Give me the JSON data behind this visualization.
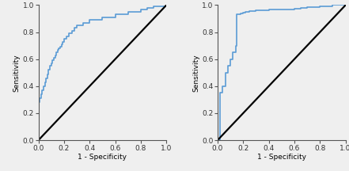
{
  "roc1_fpr": [
    0.0,
    0.0,
    0.01,
    0.01,
    0.02,
    0.02,
    0.03,
    0.03,
    0.04,
    0.04,
    0.05,
    0.05,
    0.06,
    0.06,
    0.07,
    0.07,
    0.08,
    0.08,
    0.09,
    0.09,
    0.1,
    0.1,
    0.11,
    0.11,
    0.12,
    0.12,
    0.13,
    0.13,
    0.14,
    0.14,
    0.15,
    0.15,
    0.16,
    0.16,
    0.17,
    0.17,
    0.18,
    0.18,
    0.19,
    0.19,
    0.2,
    0.2,
    0.22,
    0.22,
    0.24,
    0.24,
    0.26,
    0.26,
    0.28,
    0.28,
    0.3,
    0.3,
    0.35,
    0.35,
    0.4,
    0.4,
    0.5,
    0.5,
    0.6,
    0.6,
    0.7,
    0.7,
    0.8,
    0.8,
    0.85,
    0.85,
    0.9,
    0.9,
    1.0,
    1.0
  ],
  "roc1_tpr": [
    0.0,
    0.28,
    0.28,
    0.31,
    0.31,
    0.34,
    0.34,
    0.37,
    0.37,
    0.4,
    0.4,
    0.43,
    0.43,
    0.46,
    0.46,
    0.49,
    0.49,
    0.52,
    0.52,
    0.55,
    0.55,
    0.57,
    0.57,
    0.59,
    0.59,
    0.61,
    0.61,
    0.63,
    0.63,
    0.65,
    0.65,
    0.67,
    0.67,
    0.68,
    0.68,
    0.69,
    0.69,
    0.71,
    0.71,
    0.73,
    0.73,
    0.75,
    0.75,
    0.77,
    0.77,
    0.79,
    0.79,
    0.81,
    0.81,
    0.83,
    0.83,
    0.85,
    0.85,
    0.87,
    0.87,
    0.89,
    0.89,
    0.91,
    0.91,
    0.93,
    0.93,
    0.95,
    0.95,
    0.97,
    0.97,
    0.98,
    0.98,
    0.99,
    0.99,
    1.0
  ],
  "roc2_fpr": [
    0.0,
    0.0,
    0.02,
    0.02,
    0.04,
    0.04,
    0.06,
    0.06,
    0.08,
    0.08,
    0.1,
    0.1,
    0.12,
    0.12,
    0.14,
    0.14,
    0.15,
    0.15,
    0.16,
    0.16,
    0.18,
    0.18,
    0.2,
    0.2,
    0.22,
    0.22,
    0.25,
    0.25,
    0.3,
    0.3,
    0.4,
    0.4,
    0.5,
    0.5,
    0.6,
    0.6,
    0.65,
    0.65,
    0.7,
    0.7,
    0.8,
    0.8,
    0.9,
    0.9,
    1.0,
    1.0
  ],
  "roc2_tpr": [
    0.0,
    0.0,
    0.0,
    0.35,
    0.35,
    0.4,
    0.4,
    0.5,
    0.5,
    0.55,
    0.55,
    0.6,
    0.6,
    0.65,
    0.65,
    0.7,
    0.7,
    0.93,
    0.93,
    0.935,
    0.935,
    0.94,
    0.94,
    0.945,
    0.945,
    0.95,
    0.95,
    0.955,
    0.955,
    0.96,
    0.96,
    0.965,
    0.965,
    0.97,
    0.97,
    0.975,
    0.975,
    0.98,
    0.98,
    0.985,
    0.985,
    0.99,
    0.99,
    1.0,
    1.0,
    1.0
  ],
  "line_color": "#5b9bd5",
  "diag_color": "#000000",
  "bg_color": "#efefef",
  "xlabel": "1 - Specificity",
  "ylabel": "Sensitivity",
  "tick_labels": [
    "0.0",
    "0.2",
    "0.4",
    "0.6",
    "0.8",
    "1.0"
  ],
  "tick_values": [
    0.0,
    0.2,
    0.4,
    0.6,
    0.8,
    1.0
  ],
  "axis_color": "#555555",
  "label_color": "#333333",
  "fontsize": 6.5,
  "lw_roc": 1.2,
  "lw_diag": 1.6
}
